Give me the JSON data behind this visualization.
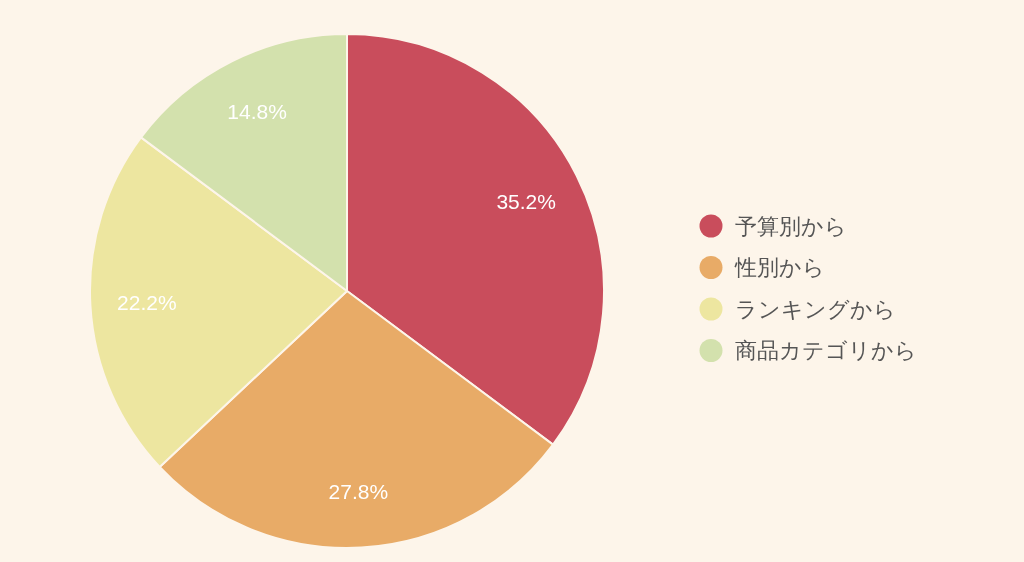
{
  "chart_data": {
    "type": "pie",
    "categories": [
      "予算別から",
      "性別から",
      "ランキングから",
      "商品カテゴリから"
    ],
    "values": [
      35.2,
      27.8,
      22.2,
      14.8
    ],
    "value_labels": [
      "35.2%",
      "27.8%",
      "22.2%",
      "14.8%"
    ],
    "colors": [
      "#c94d5c",
      "#e8ab67",
      "#ede6a0",
      "#d3e1ad"
    ],
    "legend": "right"
  }
}
